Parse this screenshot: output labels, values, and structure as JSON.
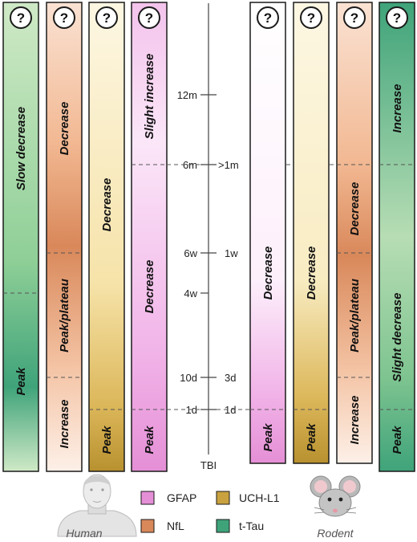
{
  "colors": {
    "gfap": "#e58fd6",
    "gfap_light": "#fbe6f8",
    "uchl1": "#c9a23f",
    "uchl1_light": "#fbf3d9",
    "nfl": "#d9885a",
    "nfl_light": "#fae2d3",
    "ttau": "#3fa37a",
    "ttau_light": "#cfe9c6",
    "border": "#1a1a1a"
  },
  "question_mark": "?",
  "axis": {
    "human_ticks": [
      "12m",
      "6m",
      "6w",
      "4w",
      "10d",
      "1d"
    ],
    "rodent_ticks": [
      ">1m",
      "1w",
      "3d",
      "1d"
    ],
    "origin_label": "TBI"
  },
  "human_bars": [
    {
      "marker": "t-Tau",
      "phases": [
        "Slow decrease",
        "Peak"
      ]
    },
    {
      "marker": "NfL",
      "phases": [
        "Decrease",
        "Peak/plateau",
        "Increase"
      ]
    },
    {
      "marker": "UCH-L1",
      "phases": [
        "Decrease",
        "Peak"
      ]
    },
    {
      "marker": "GFAP",
      "phases": [
        "Slight increase",
        "Decrease",
        "Peak"
      ]
    }
  ],
  "rodent_bars": [
    {
      "marker": "GFAP",
      "phases": [
        "Decrease",
        "Peak"
      ]
    },
    {
      "marker": "UCH-L1",
      "phases": [
        "Decrease",
        "Peak"
      ]
    },
    {
      "marker": "NfL",
      "phases": [
        "Decrease",
        "Peak/plateau",
        "Increase"
      ]
    },
    {
      "marker": "t-Tau",
      "phases": [
        "Increase",
        "Slight decrease",
        "Peak"
      ]
    }
  ],
  "legend": {
    "items": [
      {
        "name": "GFAP",
        "color": "#e58fd6"
      },
      {
        "name": "UCH-L1",
        "color": "#c9a23f"
      },
      {
        "name": "NfL",
        "color": "#d9885a"
      },
      {
        "name": "t-Tau",
        "color": "#3fa37a"
      }
    ]
  },
  "species": {
    "human": "Human",
    "rodent": "Rodent"
  }
}
